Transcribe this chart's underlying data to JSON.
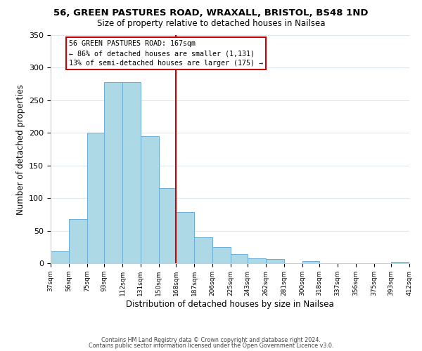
{
  "title": "56, GREEN PASTURES ROAD, WRAXALL, BRISTOL, BS48 1ND",
  "subtitle": "Size of property relative to detached houses in Nailsea",
  "xlabel": "Distribution of detached houses by size in Nailsea",
  "ylabel": "Number of detached properties",
  "bar_edges": [
    37,
    56,
    75,
    93,
    112,
    131,
    150,
    168,
    187,
    206,
    225,
    243,
    262,
    281,
    300,
    318,
    337,
    356,
    375,
    393,
    412
  ],
  "bar_heights": [
    18,
    68,
    200,
    278,
    278,
    195,
    115,
    79,
    40,
    25,
    14,
    8,
    7,
    0,
    3,
    0,
    0,
    0,
    0,
    2
  ],
  "bar_color": "#add8e6",
  "bar_edgecolor": "#6aaed6",
  "vline_x": 168,
  "vline_color": "#cc0000",
  "annotation_title": "56 GREEN PASTURES ROAD: 167sqm",
  "annotation_line1": "← 86% of detached houses are smaller (1,131)",
  "annotation_line2": "13% of semi-detached houses are larger (175) →",
  "annotation_box_edgecolor": "#cc0000",
  "ylim": [
    0,
    350
  ],
  "tick_labels": [
    "37sqm",
    "56sqm",
    "75sqm",
    "93sqm",
    "112sqm",
    "131sqm",
    "150sqm",
    "168sqm",
    "187sqm",
    "206sqm",
    "225sqm",
    "243sqm",
    "262sqm",
    "281sqm",
    "300sqm",
    "318sqm",
    "337sqm",
    "356sqm",
    "375sqm",
    "393sqm",
    "412sqm"
  ],
  "footer1": "Contains HM Land Registry data © Crown copyright and database right 2024.",
  "footer2": "Contains public sector information licensed under the Open Government Licence v3.0.",
  "background_color": "#ffffff",
  "grid_color": "#dde8f0"
}
